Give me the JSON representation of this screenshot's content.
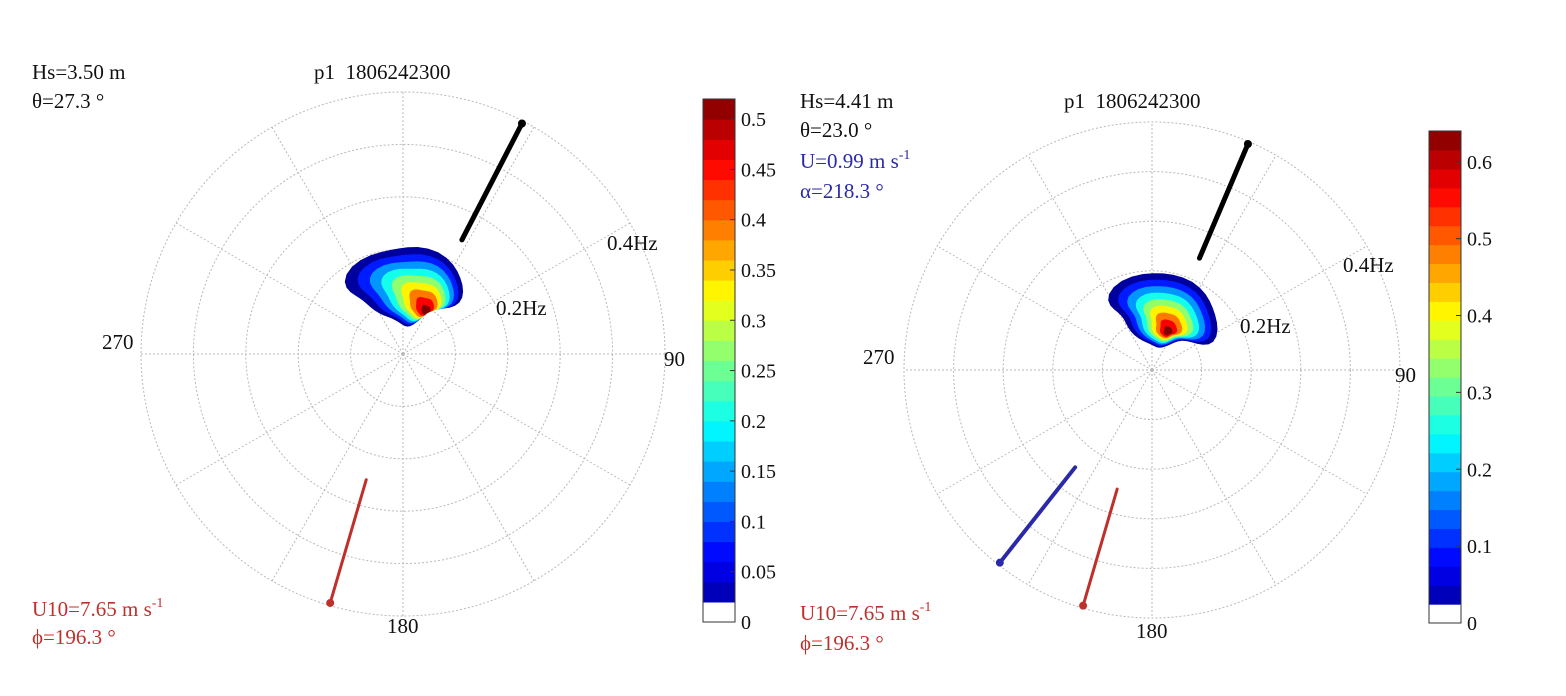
{
  "chart_data": [
    {
      "type": "polar-heatmap",
      "title": "p1  1806242300",
      "stats": {
        "hs": "Hs=3.50 m",
        "theta": "θ=27.3 °"
      },
      "wind": {
        "u10": "U10=7.65 m s",
        "phi": "ϕ=196.3 °",
        "color": "#c0302b",
        "direction_deg": 196.3
      },
      "current": null,
      "mean_wave_direction_deg": 27.3,
      "angle_labels": [
        "90",
        "180",
        "270"
      ],
      "radial_labels": [
        "0.2Hz",
        "0.4Hz"
      ],
      "radial_label_values_hz": [
        0.2,
        0.4
      ],
      "freq_max_hz": 0.5,
      "colorbar": {
        "ticks": [
          "0",
          "0.05",
          "0.1",
          "0.15",
          "0.2",
          "0.25",
          "0.3",
          "0.35",
          "0.4",
          "0.45",
          "0.5"
        ],
        "tick_values": [
          0,
          0.05,
          0.1,
          0.15,
          0.2,
          0.25,
          0.3,
          0.35,
          0.4,
          0.45,
          0.5
        ],
        "max": 0.52
      },
      "spectrum": {
        "peak_direction_deg": 27,
        "peak_frequency_hz": 0.095,
        "peak_value": 0.52,
        "outer_extent_hz": [
          0.06,
          0.21
        ],
        "outer_extent_deg": [
          -40,
          45
        ]
      }
    },
    {
      "type": "polar-heatmap",
      "title": "p1  1806242300",
      "stats": {
        "hs": "Hs=4.41 m",
        "theta": "θ=23.0 °"
      },
      "current": {
        "u": "U=0.99 m s",
        "alpha": "α=218.3 °",
        "color": "#2a2aa8",
        "direction_deg": 218.3
      },
      "wind": {
        "u10": "U10=7.65 m s",
        "phi": "ϕ=196.3 °",
        "color": "#c0302b",
        "direction_deg": 196.3
      },
      "mean_wave_direction_deg": 23.0,
      "angle_labels": [
        "90",
        "180",
        "270"
      ],
      "radial_labels": [
        "0.2Hz",
        "0.4Hz"
      ],
      "radial_label_values_hz": [
        0.2,
        0.4
      ],
      "freq_max_hz": 0.5,
      "colorbar": {
        "ticks": [
          "0",
          "0.1",
          "0.2",
          "0.3",
          "0.4",
          "0.5",
          "0.6"
        ],
        "tick_values": [
          0,
          0.1,
          0.2,
          0.3,
          0.4,
          0.5,
          0.6
        ],
        "max": 0.64
      },
      "spectrum": {
        "peak_direction_deg": 22,
        "peak_frequency_hz": 0.085,
        "peak_value": 0.64,
        "outer_extent_hz": [
          0.05,
          0.2
        ],
        "outer_extent_deg": [
          -35,
          60
        ]
      }
    }
  ],
  "superscript": "-1"
}
